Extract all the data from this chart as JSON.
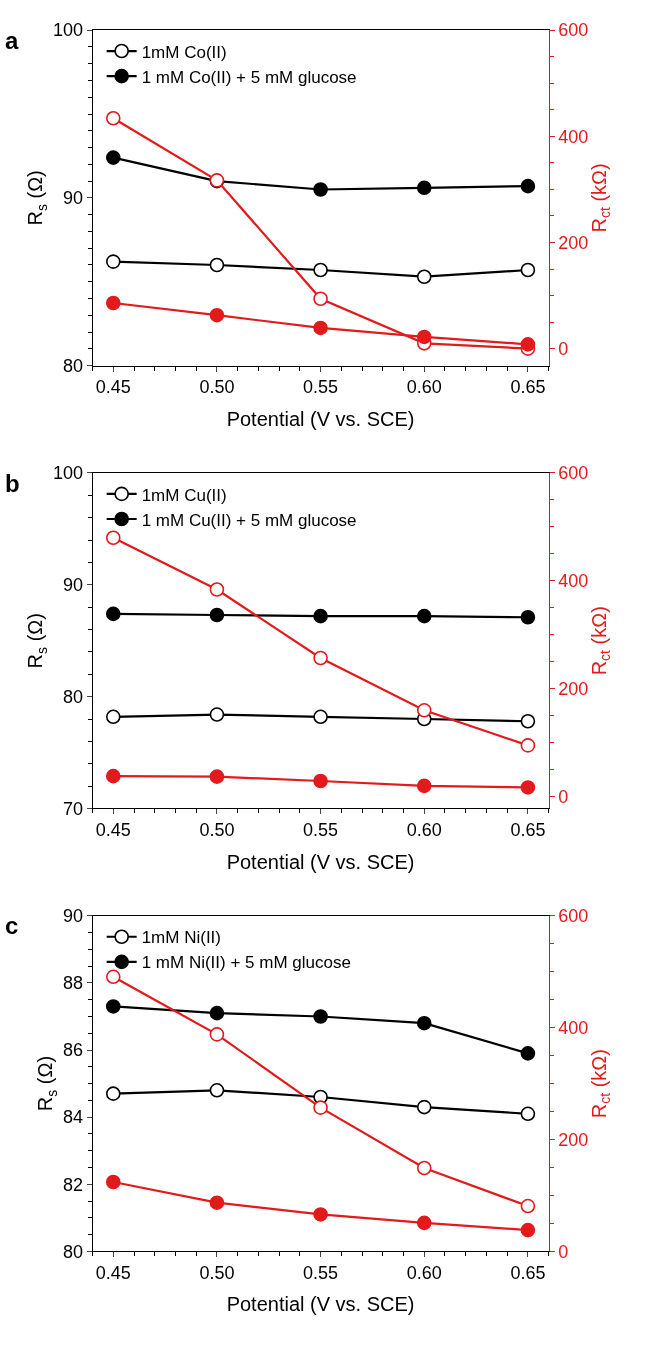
{
  "chart_data": [
    {
      "type": "line",
      "title": "a",
      "xlabel": "Potential (V vs. SCE)",
      "ylabel": "R$_{s}$ (Ω)",
      "y2label": "R$_{ct}$ (kΩ)",
      "x": [
        0.45,
        0.5,
        0.55,
        0.6,
        0.65
      ],
      "xlim": [
        0.44,
        0.66
      ],
      "xticks": [
        {
          "value": 0.45,
          "label": "0.45"
        },
        {
          "value": 0.5,
          "label": "0.50"
        },
        {
          "value": 0.55,
          "label": "0.55"
        },
        {
          "value": 0.6,
          "label": "0.60"
        },
        {
          "value": 0.65,
          "label": "0.65"
        }
      ],
      "ylim": [
        80,
        100
      ],
      "yticks": [
        80,
        90,
        100
      ],
      "y2lim": [
        -32,
        600
      ],
      "y2ticks": [
        0,
        200,
        400,
        600
      ],
      "legend": "top left",
      "line_style": "solid",
      "series": [
        {
          "name": "1mM Co(II)",
          "color": "#000000",
          "marker": "circle-open",
          "values": [
            86.2,
            86.0,
            85.7,
            85.3,
            85.7
          ]
        },
        {
          "name": "1 mM Co(II) + 5 mM glucose",
          "color": "#000000",
          "marker": "circle",
          "values": [
            92.4,
            91.0,
            90.5,
            90.6,
            90.7
          ]
        },
        {
          "color": "#e31a1c",
          "marker": "circle-open",
          "axis": "y2",
          "values": [
            434,
            317,
            94,
            10,
            0
          ]
        },
        {
          "color": "#e31a1c",
          "marker": "circle",
          "axis": "y2",
          "values": [
            86,
            63,
            39,
            22,
            8
          ]
        }
      ]
    },
    {
      "type": "line",
      "title": "b",
      "xlabel": "Potential (V vs. SCE)",
      "ylabel": "R$_{s}$ (Ω)",
      "y2label": "R$_{ct}$ (kΩ)",
      "x": [
        0.45,
        0.5,
        0.55,
        0.6,
        0.65
      ],
      "xlim": [
        0.44,
        0.66
      ],
      "xticks": [
        {
          "value": 0.45,
          "label": "0.45"
        },
        {
          "value": 0.5,
          "label": "0.50"
        },
        {
          "value": 0.55,
          "label": "0.55"
        },
        {
          "value": 0.6,
          "label": "0.60"
        },
        {
          "value": 0.65,
          "label": "0.65"
        }
      ],
      "ylim": [
        70,
        100
      ],
      "yticks": [
        70,
        80,
        90,
        100
      ],
      "y2lim": [
        -22,
        600
      ],
      "y2ticks": [
        0,
        200,
        400,
        600
      ],
      "legend": "top left",
      "line_style": "solid",
      "series": [
        {
          "name": "1mM Cu(II)",
          "color": "#000000",
          "marker": "circle-open",
          "values": [
            78.2,
            78.4,
            78.2,
            78.0,
            77.8
          ]
        },
        {
          "name": "1 mM Cu(II) + 5 mM glucose",
          "color": "#000000",
          "marker": "circle",
          "values": [
            87.4,
            87.3,
            87.2,
            87.2,
            87.1
          ]
        },
        {
          "color": "#e31a1c",
          "marker": "circle-open",
          "axis": "y2",
          "values": [
            480,
            384,
            257,
            160,
            95
          ]
        },
        {
          "color": "#e31a1c",
          "marker": "circle",
          "axis": "y2",
          "values": [
            38,
            37,
            29,
            20,
            17
          ]
        }
      ]
    },
    {
      "type": "line",
      "title": "c",
      "xlabel": "Potential (V vs. SCE)",
      "ylabel": "R$_{s}$ (Ω)",
      "y2label": "R$_{ct}$ (kΩ)",
      "x": [
        0.45,
        0.5,
        0.55,
        0.6,
        0.65
      ],
      "xlim": [
        0.44,
        0.66
      ],
      "xticks": [
        {
          "value": 0.45,
          "label": "0.45"
        },
        {
          "value": 0.5,
          "label": "0.50"
        },
        {
          "value": 0.55,
          "label": "0.55"
        },
        {
          "value": 0.6,
          "label": "0.60"
        },
        {
          "value": 0.65,
          "label": "0.65"
        }
      ],
      "ylim": [
        80,
        90
      ],
      "yticks": [
        80,
        82,
        84,
        86,
        88,
        90
      ],
      "y2lim": [
        0,
        600
      ],
      "y2ticks": [
        0,
        200,
        400,
        600
      ],
      "legend": "top left",
      "line_style": "solid",
      "series": [
        {
          "name": "1mM Ni(II)",
          "color": "#000000",
          "marker": "circle-open",
          "values": [
            84.7,
            84.8,
            84.6,
            84.3,
            84.1
          ]
        },
        {
          "name": "1 mM Ni(II) + 5 mM glucose",
          "color": "#000000",
          "marker": "circle",
          "values": [
            87.3,
            87.1,
            87.0,
            86.8,
            85.9
          ]
        },
        {
          "color": "#e31a1c",
          "marker": "circle-open",
          "axis": "y2",
          "values": [
            491,
            388,
            257,
            149,
            81
          ]
        },
        {
          "color": "#e31a1c",
          "marker": "circle",
          "axis": "y2",
          "values": [
            124,
            87,
            66,
            51,
            38
          ]
        }
      ]
    }
  ]
}
